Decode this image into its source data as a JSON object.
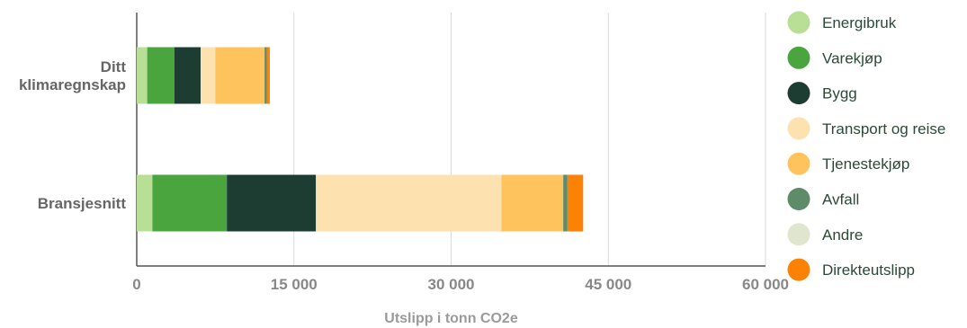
{
  "chart_data": {
    "type": "bar",
    "orientation": "horizontal",
    "stacked": true,
    "categories": [
      "Ditt klimaregnskap",
      "Bransjesnitt"
    ],
    "category_lines": [
      [
        "Ditt",
        "klimaregnskap"
      ],
      [
        "Bransjesnitt"
      ]
    ],
    "series": [
      {
        "name": "Energibruk",
        "color": "#b7df95",
        "values": [
          1000,
          1500
        ]
      },
      {
        "name": "Varekjøp",
        "color": "#4aa53f",
        "values": [
          2600,
          7100
        ]
      },
      {
        "name": "Bygg",
        "color": "#1d3d33",
        "values": [
          2500,
          8500
        ]
      },
      {
        "name": "Transport og reise",
        "color": "#fde2b0",
        "values": [
          1400,
          17700
        ]
      },
      {
        "name": "Tjenestekjøp",
        "color": "#fec35c",
        "values": [
          4700,
          5900
        ]
      },
      {
        "name": "Avfall",
        "color": "#5e8b68",
        "values": [
          200,
          400
        ]
      },
      {
        "name": "Andre",
        "color": "#dfe6cd",
        "values": [
          0,
          0
        ]
      },
      {
        "name": "Direkteutslipp",
        "color": "#fb8204",
        "values": [
          300,
          1500
        ]
      }
    ],
    "xlim": [
      0,
      60000
    ],
    "x_ticks": [
      0,
      15000,
      30000,
      45000,
      60000
    ],
    "x_tick_labels": [
      "0",
      "15 000",
      "30 000",
      "45 000",
      "60 000"
    ],
    "xlabel": "Utslipp i tonn CO2e",
    "grid": true,
    "legend_position": "right"
  }
}
